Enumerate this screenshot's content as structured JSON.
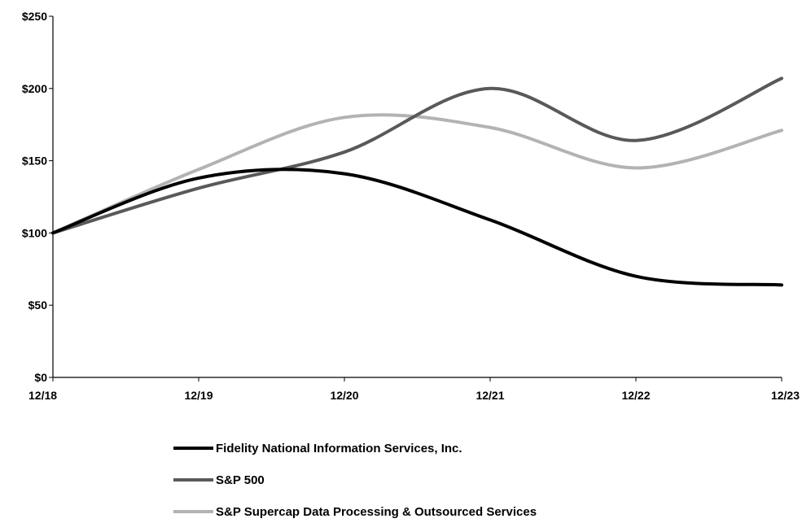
{
  "chart_data": {
    "type": "line",
    "title": "",
    "xlabel": "",
    "ylabel": "",
    "categories": [
      "12/18",
      "12/19",
      "12/20",
      "12/21",
      "12/22",
      "12/23"
    ],
    "y_tick_labels": [
      "$0",
      "$50",
      "$100",
      "$150",
      "$200",
      "$250"
    ],
    "y_ticks": [
      0,
      50,
      100,
      150,
      200,
      250
    ],
    "ylim": [
      0,
      250
    ],
    "grid": false,
    "legend_position": "bottom",
    "series": [
      {
        "name": "Fidelity National Information Services, Inc.",
        "color": "#000000",
        "values": [
          100,
          138,
          141,
          109,
          70,
          64
        ]
      },
      {
        "name": "S&P 500",
        "color": "#595959",
        "values": [
          100,
          131,
          156,
          200,
          164,
          207
        ]
      },
      {
        "name": "S&P Supercap Data Processing & Outsourced Services",
        "color": "#b3b3b3",
        "values": [
          100,
          144,
          180,
          173,
          145,
          171
        ]
      }
    ]
  }
}
